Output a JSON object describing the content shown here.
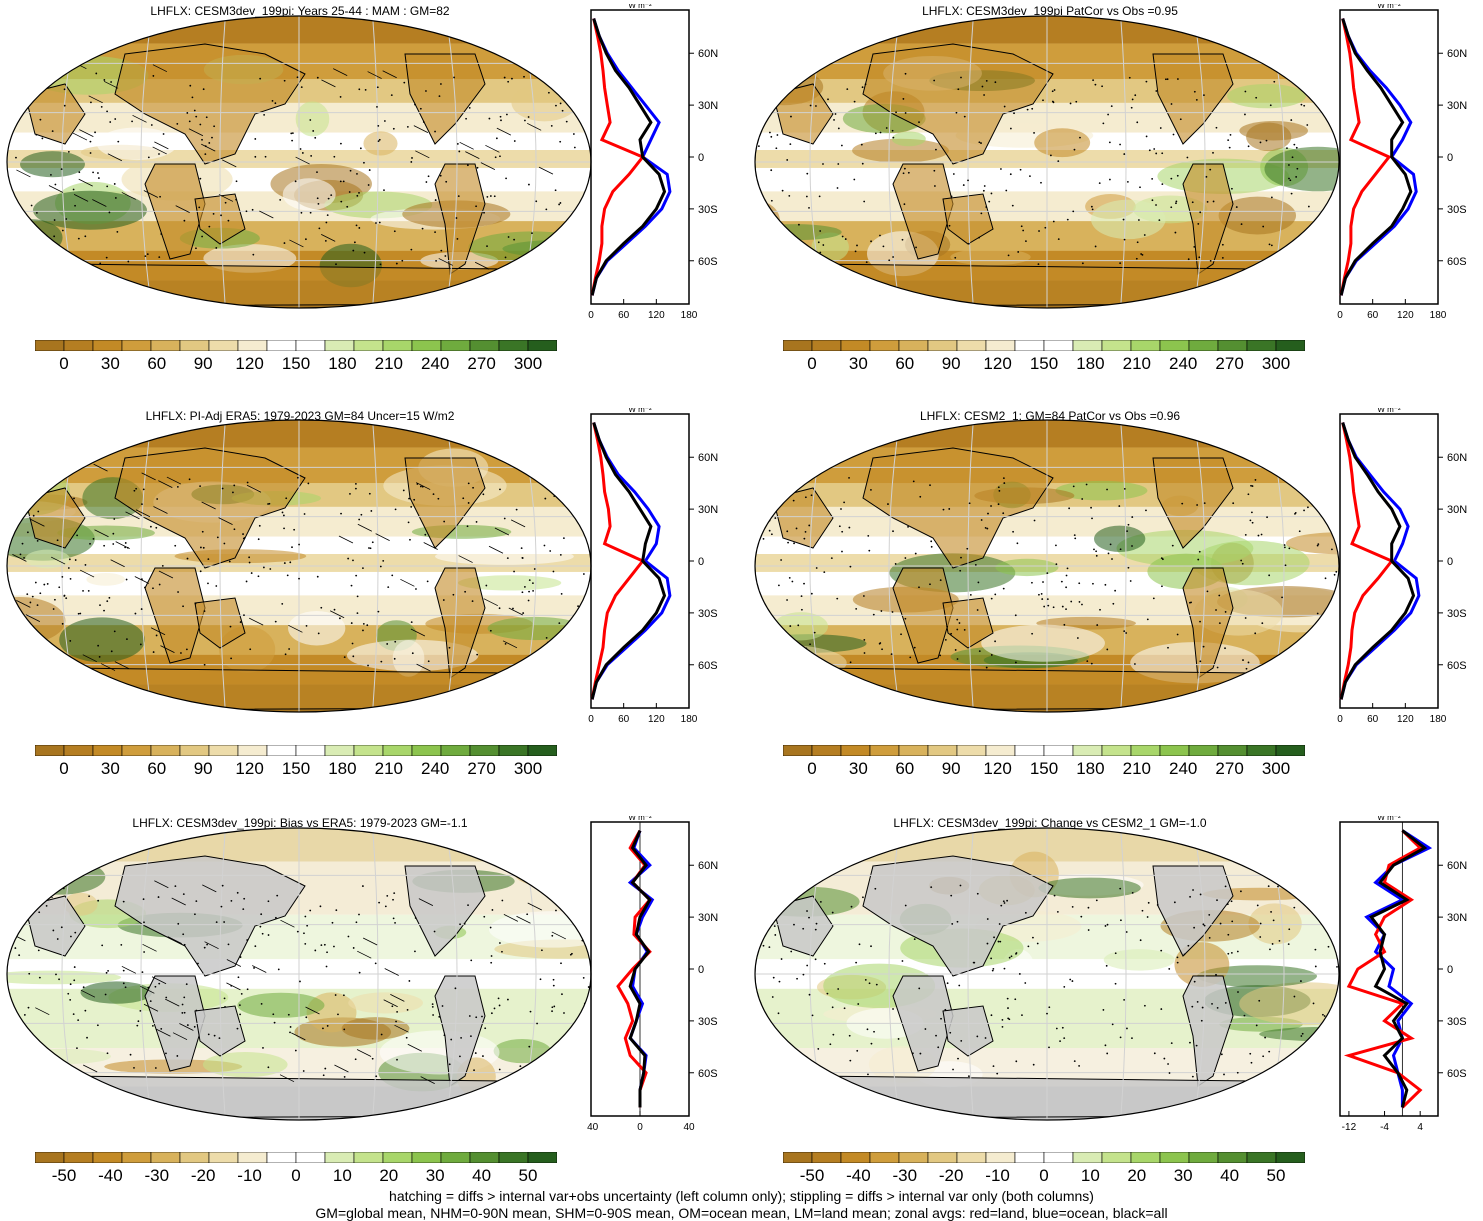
{
  "colors": {
    "full_scale": [
      "#a8751f",
      "#b57e22",
      "#c38a26",
      "#cf9d3c",
      "#d8b25c",
      "#e2c882",
      "#eddcaa",
      "#f5ecd0",
      "#ffffff",
      "#ffffff",
      "#d9ecb4",
      "#c4e38c",
      "#a8d66a",
      "#8cc44e",
      "#6fab3e",
      "#548f31",
      "#3a7526",
      "#255e1d"
    ],
    "bias_scale": [
      "#a8751f",
      "#b57e22",
      "#c38a26",
      "#cf9d3c",
      "#d8b25c",
      "#e2c882",
      "#eddcaa",
      "#f5ecd0",
      "#ffffff",
      "#ffffff",
      "#d9ecb4",
      "#c4e38c",
      "#a8d66a",
      "#8cc44e",
      "#6fab3e",
      "#548f31",
      "#3a7526",
      "#255e1d"
    ],
    "land": "#c8c8c8",
    "land_line": "#d2d2d2",
    "zonal_land": "#ff0000",
    "zonal_ocean": "#0000ff",
    "zonal_all": "#000000"
  },
  "panels": [
    {
      "id": "p1",
      "title": "LHFLX: CESM3dev_199pi: Years 25-44 : MAM : GM=82",
      "scale": "full",
      "ticks": [
        "0",
        "30",
        "60",
        "90",
        "120",
        "150",
        "180",
        "210",
        "240",
        "270",
        "300"
      ],
      "zonal_ticks": [
        "0",
        "60",
        "120",
        "180"
      ],
      "zonal_xlim": [
        0,
        180
      ],
      "zonal_unit": "W m⁻²",
      "lat_labels": [
        "60N",
        "30N",
        "0",
        "30S",
        "60S"
      ],
      "hatched": true,
      "stippled": true
    },
    {
      "id": "p2",
      "title": "LHFLX: CESM3dev_199pi PatCor vs Obs =0.95",
      "scale": "full",
      "ticks": [
        "0",
        "30",
        "60",
        "90",
        "120",
        "150",
        "180",
        "210",
        "240",
        "270",
        "300"
      ],
      "zonal_ticks": [
        "0",
        "60",
        "120",
        "180"
      ],
      "zonal_xlim": [
        0,
        180
      ],
      "zonal_unit": "W m⁻²",
      "lat_labels": [
        "60N",
        "30N",
        "0",
        "30S",
        "60S"
      ],
      "hatched": false,
      "stippled": true
    },
    {
      "id": "p3",
      "title": "LHFLX: PI-Adj ERA5: 1979-2023 GM=84 Uncer=15 W/m2",
      "scale": "full",
      "ticks": [
        "0",
        "30",
        "60",
        "90",
        "120",
        "150",
        "180",
        "210",
        "240",
        "270",
        "300"
      ],
      "zonal_ticks": [
        "0",
        "60",
        "120",
        "180"
      ],
      "zonal_xlim": [
        0,
        180
      ],
      "zonal_unit": "W m⁻²",
      "lat_labels": [
        "60N",
        "30N",
        "0",
        "30S",
        "60S"
      ],
      "hatched": true,
      "stippled": true
    },
    {
      "id": "p4",
      "title": "LHFLX: CESM2_1: GM=84 PatCor vs Obs =0.96",
      "scale": "full",
      "ticks": [
        "0",
        "30",
        "60",
        "90",
        "120",
        "150",
        "180",
        "210",
        "240",
        "270",
        "300"
      ],
      "zonal_ticks": [
        "0",
        "60",
        "120",
        "180"
      ],
      "zonal_xlim": [
        0,
        180
      ],
      "zonal_unit": "W m⁻²",
      "lat_labels": [
        "60N",
        "30N",
        "0",
        "30S",
        "60S"
      ],
      "hatched": false,
      "stippled": true
    },
    {
      "id": "p5",
      "title": "LHFLX: CESM3dev_199pi: Bias vs ERA5: 1979-2023 GM=-1.1",
      "scale": "bias",
      "ticks": [
        "-50",
        "-40",
        "-30",
        "-20",
        "-10",
        "0",
        "10",
        "20",
        "30",
        "40",
        "50"
      ],
      "zonal_ticks": [
        "-40",
        "0",
        "40"
      ],
      "zonal_xlim": [
        -40,
        40
      ],
      "zonal_unit": "W m⁻²",
      "lat_labels": [
        "60N",
        "30N",
        "0",
        "30S",
        "60S"
      ],
      "hatched": true,
      "stippled": true
    },
    {
      "id": "p6",
      "title": "LHFLX: CESM3dev_199pi: Change vs CESM2_1 GM=-1.0",
      "scale": "bias",
      "ticks": [
        "-50",
        "-40",
        "-30",
        "-20",
        "-10",
        "0",
        "10",
        "20",
        "30",
        "40",
        "50"
      ],
      "zonal_ticks": [
        "-12",
        "-4",
        "4"
      ],
      "zonal_xlim": [
        -14,
        8
      ],
      "zonal_unit": "W m⁻²",
      "lat_labels": [
        "60N",
        "30N",
        "0",
        "30S",
        "60S"
      ],
      "hatched": false,
      "stippled": true
    }
  ],
  "footer": {
    "line1": "hatching = diffs > internal var+obs uncertainty (left column only); stippling = diffs > internal var only (both columns)",
    "line2": "GM=global mean, NHM=0-90N mean, SHM=0-90S mean, OM=ocean mean, LM=land mean; zonal avgs: red=land, blue=ocean, black=all"
  },
  "chart_data": [
    {
      "type": "line",
      "panel": "p1",
      "ylabel": "",
      "xlim": [
        0,
        180
      ],
      "y": [
        80,
        70,
        60,
        50,
        40,
        30,
        20,
        10,
        0,
        -10,
        -20,
        -30,
        -40,
        -50,
        -60,
        -70,
        -80
      ],
      "series": [
        {
          "values": [
            5,
            15,
            30,
            50,
            75,
            100,
            125,
            110,
            95,
            140,
            145,
            130,
            100,
            65,
            30,
            10,
            2
          ]
        },
        {
          "values": [
            5,
            12,
            18,
            22,
            25,
            30,
            35,
            20,
            95,
            70,
            40,
            25,
            20,
            20,
            15,
            8,
            2
          ]
        },
        {
          "values": [
            5,
            15,
            28,
            45,
            70,
            90,
            110,
            90,
            95,
            125,
            135,
            120,
            95,
            60,
            28,
            10,
            2
          ]
        }
      ]
    },
    {
      "type": "line",
      "panel": "p2",
      "ylabel": "",
      "xlim": [
        0,
        180
      ],
      "y": [
        80,
        70,
        60,
        50,
        40,
        30,
        20,
        10,
        0,
        -10,
        -20,
        -30,
        -40,
        -50,
        -60,
        -70,
        -80
      ],
      "series": [
        {
          "values": [
            5,
            15,
            30,
            55,
            85,
            110,
            130,
            115,
            95,
            135,
            140,
            125,
            100,
            65,
            30,
            10,
            2
          ]
        },
        {
          "values": [
            5,
            12,
            18,
            22,
            25,
            30,
            35,
            20,
            90,
            65,
            40,
            25,
            20,
            20,
            15,
            8,
            2
          ]
        },
        {
          "values": [
            5,
            15,
            28,
            50,
            75,
            95,
            115,
            95,
            95,
            120,
            130,
            115,
            95,
            60,
            28,
            10,
            2
          ]
        }
      ]
    },
    {
      "type": "line",
      "panel": "p3",
      "ylabel": "",
      "xlim": [
        0,
        180
      ],
      "y": [
        80,
        70,
        60,
        50,
        40,
        30,
        20,
        10,
        0,
        -10,
        -20,
        -30,
        -40,
        -50,
        -60,
        -70,
        -80
      ],
      "series": [
        {
          "values": [
            5,
            15,
            30,
            50,
            80,
            105,
            125,
            120,
            100,
            140,
            145,
            130,
            100,
            65,
            30,
            10,
            2
          ]
        },
        {
          "values": [
            5,
            12,
            18,
            22,
            25,
            32,
            35,
            25,
            95,
            70,
            45,
            30,
            25,
            22,
            15,
            8,
            2
          ]
        },
        {
          "values": [
            5,
            15,
            28,
            45,
            70,
            90,
            110,
            100,
            95,
            125,
            135,
            120,
            95,
            60,
            28,
            10,
            2
          ]
        }
      ]
    },
    {
      "type": "line",
      "panel": "p4",
      "ylabel": "",
      "xlim": [
        0,
        180
      ],
      "y": [
        80,
        70,
        60,
        50,
        40,
        30,
        20,
        10,
        0,
        -10,
        -20,
        -30,
        -40,
        -50,
        -60,
        -70,
        -80
      ],
      "series": [
        {
          "values": [
            5,
            15,
            30,
            55,
            80,
            110,
            125,
            115,
            100,
            140,
            145,
            130,
            100,
            65,
            30,
            10,
            2
          ]
        },
        {
          "values": [
            5,
            12,
            18,
            22,
            25,
            30,
            35,
            22,
            95,
            70,
            42,
            27,
            22,
            20,
            15,
            8,
            2
          ]
        },
        {
          "values": [
            5,
            15,
            28,
            50,
            70,
            95,
            110,
            95,
            95,
            125,
            135,
            120,
            95,
            60,
            28,
            10,
            2
          ]
        }
      ]
    },
    {
      "type": "line",
      "panel": "p5",
      "ylabel": "",
      "xlim": [
        -40,
        40
      ],
      "y": [
        80,
        70,
        60,
        50,
        40,
        30,
        20,
        10,
        0,
        -10,
        -20,
        -30,
        -40,
        -50,
        -60,
        -70,
        -80
      ],
      "series": [
        {
          "values": [
            0,
            -5,
            8,
            -8,
            10,
            2,
            -3,
            6,
            -4,
            -6,
            2,
            -3,
            -8,
            5,
            3,
            0,
            0
          ]
        },
        {
          "values": [
            0,
            -8,
            4,
            -6,
            8,
            -4,
            -5,
            8,
            -6,
            -18,
            -10,
            -6,
            -12,
            -8,
            5,
            0,
            0
          ]
        },
        {
          "values": [
            0,
            -6,
            5,
            -6,
            8,
            0,
            -3,
            7,
            -4,
            -8,
            0,
            -3,
            -8,
            4,
            3,
            0,
            0
          ]
        }
      ]
    },
    {
      "type": "line",
      "panel": "p6",
      "ylabel": "",
      "xlim": [
        -14,
        8
      ],
      "y": [
        80,
        70,
        60,
        50,
        40,
        30,
        20,
        10,
        0,
        -10,
        -20,
        -30,
        -40,
        -50,
        -60,
        -70,
        -80
      ],
      "series": [
        {
          "values": [
            0,
            6,
            -2,
            -6,
            0,
            -8,
            -4,
            -6,
            -2,
            -3,
            2,
            -1,
            0,
            -2,
            -1,
            0,
            0
          ]
        },
        {
          "values": [
            0,
            4,
            -3,
            -4,
            2,
            -4,
            -6,
            -4,
            -10,
            -12,
            0,
            -4,
            2,
            -12,
            -1,
            4,
            0
          ]
        },
        {
          "values": [
            0,
            5,
            -2,
            -5,
            1,
            -7,
            -4,
            -5,
            -4,
            -6,
            1,
            -2,
            0,
            -4,
            -1,
            1,
            0
          ]
        }
      ]
    }
  ]
}
